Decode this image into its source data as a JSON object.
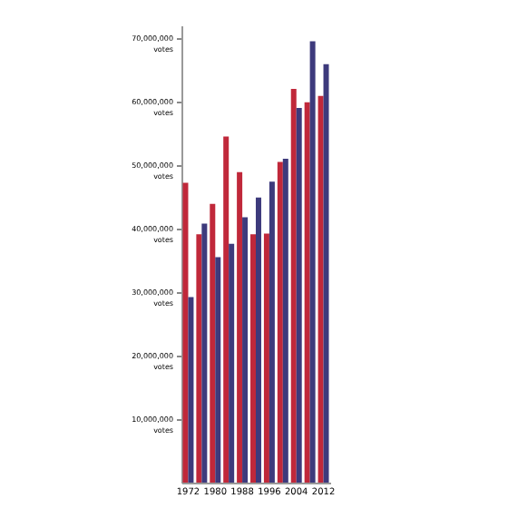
{
  "chart_data": {
    "type": "bar",
    "categories": [
      "1972",
      null,
      "1980",
      null,
      "1988",
      null,
      "1996",
      null,
      "2004",
      null,
      "2012"
    ],
    "series": [
      {
        "color": "#c0283a",
        "values": [
          47200000,
          39100000,
          43900000,
          54500000,
          48900000,
          39100000,
          39200000,
          50500000,
          62000000,
          59900000,
          60900000
        ]
      },
      {
        "color": "#3d3a7c",
        "values": [
          29200000,
          40800000,
          35500000,
          37600000,
          41800000,
          44900000,
          47400000,
          51000000,
          59000000,
          69500000,
          65900000
        ]
      }
    ],
    "ylim": [
      0,
      72000000
    ],
    "yticks": [
      {
        "value": 10000000,
        "label": "10,000,000 votes"
      },
      {
        "value": 20000000,
        "label": "20,000,000 votes"
      },
      {
        "value": 30000000,
        "label": "30,000,000 votes"
      },
      {
        "value": 40000000,
        "label": "40,000,000 votes"
      },
      {
        "value": 50000000,
        "label": "50,000,000 votes"
      },
      {
        "value": 60000000,
        "label": "60,000,000 votes"
      },
      {
        "value": 70000000,
        "label": "70,000,000 votes"
      }
    ]
  }
}
